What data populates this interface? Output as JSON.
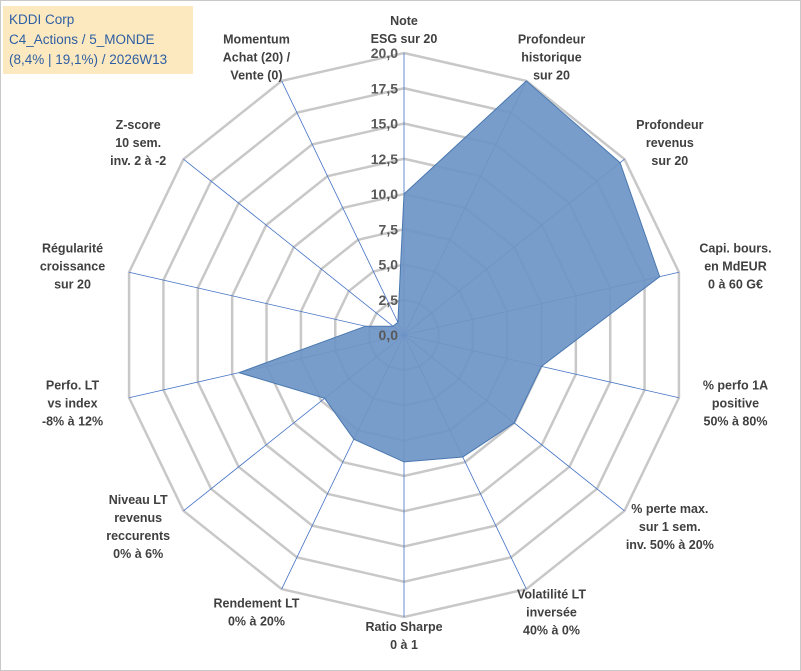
{
  "header": {
    "line1": "KDDI Corp",
    "line2": "C4_Actions / 5_MONDE",
    "line3": "(8,4% | 19,1%) / 2026W13"
  },
  "colors": {
    "fill": "#6f96c6",
    "stroke": "#4a78b0",
    "grid": "#c8c8c8",
    "spoke": "#4472c4",
    "header_bg": "#fde9c0",
    "header_text": "#2e5fa3"
  },
  "chart_data": {
    "type": "radar",
    "rlim": [
      0,
      20
    ],
    "ticks": [
      "0,0",
      "2,5",
      "5,0",
      "7,5",
      "10,0",
      "12,5",
      "15,0",
      "17,5",
      "20,0"
    ],
    "tick_values": [
      0,
      2.5,
      5,
      7.5,
      10,
      12.5,
      15,
      17.5,
      20
    ],
    "grid": true,
    "axes": [
      {
        "label": [
          "Note",
          "ESG sur 20"
        ],
        "value": 10
      },
      {
        "label": [
          "Profondeur",
          "historique",
          "sur 20"
        ],
        "value": 20
      },
      {
        "label": [
          "Profondeur",
          "revenus",
          "sur 20"
        ],
        "value": 19.6
      },
      {
        "label": [
          "Capi. bours.",
          "en MdEUR",
          "0 à 60 G€"
        ],
        "value": 18.6
      },
      {
        "label": [
          "% perfo 1A",
          "positive",
          "50% à 80%"
        ],
        "value": 10
      },
      {
        "label": [
          "% perte max.",
          "sur 1 sem.",
          "inv. 50% à 20%"
        ],
        "value": 10
      },
      {
        "label": [
          "Volatilité LT",
          "inversée",
          "40% à 0%"
        ],
        "value": 9.6
      },
      {
        "label": [
          "Ratio Sharpe",
          "0 à 1"
        ],
        "value": 9
      },
      {
        "label": [
          "Rendement LT",
          "0% à 20%"
        ],
        "value": 8.2
      },
      {
        "label": [
          "Niveau LT",
          "revenus",
          "reccurents",
          "0% à 6%"
        ],
        "value": 7.2
      },
      {
        "label": [
          "Perfo. LT",
          "vs index",
          "-8% à 12%"
        ],
        "value": 12
      },
      {
        "label": [
          "Régularité",
          "croissance",
          "sur 20"
        ],
        "value": 2.8
      },
      {
        "label": [
          "Z-score",
          "10 sem.",
          "inv. 2 à -2"
        ],
        "value": 1
      },
      {
        "label": [
          "Momentum",
          "Achat (20) /",
          "Vente (0)"
        ],
        "value": 1
      }
    ]
  }
}
